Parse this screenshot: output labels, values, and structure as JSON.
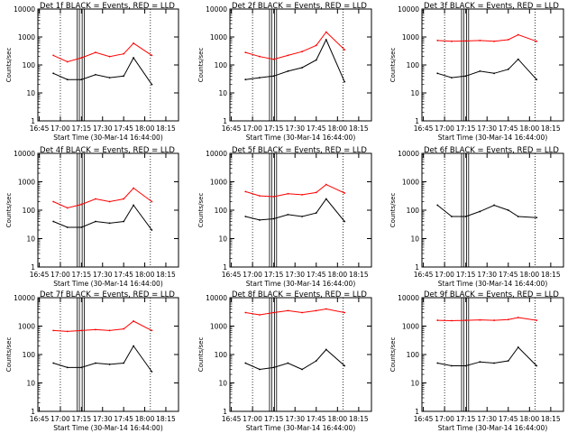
{
  "figure": {
    "start_time_label": "Start Time (30-Mar-14 16:44:00)",
    "y_axis_label": "Counts/sec",
    "x_ticks": [
      "16:45",
      "17:00",
      "17:15",
      "17:30",
      "17:45",
      "18:00",
      "18:15"
    ],
    "y_ticks": [
      "1",
      "10",
      "100",
      "1000",
      "10000"
    ],
    "colors": {
      "events": "#000000",
      "lld": "#ff0000"
    }
  },
  "chart_data": [
    {
      "type": "line",
      "title": "Det 1f BLACK = Events, RED = LLD",
      "xlabel": "Start Time (30-Mar-14 16:44:00)",
      "ylabel": "Counts/sec",
      "yscale": "log",
      "ylim": [
        1,
        10000
      ],
      "xlim": [
        "16:44",
        "18:24"
      ],
      "x": [
        "16:55",
        "17:05",
        "17:15",
        "17:25",
        "17:35",
        "17:45",
        "17:52",
        "18:05"
      ],
      "series": [
        {
          "name": "Events",
          "values": [
            50,
            30,
            30,
            45,
            35,
            40,
            180,
            20
          ]
        },
        {
          "name": "LLD",
          "values": [
            220,
            130,
            180,
            280,
            200,
            250,
            600,
            220
          ]
        }
      ]
    },
    {
      "type": "line",
      "title": "Det 2f BLACK = Events, RED = LLD",
      "xlabel": "Start Time (30-Mar-14 16:44:00)",
      "ylabel": "Counts/sec",
      "yscale": "log",
      "ylim": [
        1,
        10000
      ],
      "xlim": [
        "16:44",
        "18:24"
      ],
      "x": [
        "16:55",
        "17:05",
        "17:15",
        "17:25",
        "17:35",
        "17:45",
        "17:52",
        "18:05"
      ],
      "series": [
        {
          "name": "Events",
          "values": [
            30,
            35,
            40,
            60,
            80,
            150,
            800,
            25
          ]
        },
        {
          "name": "LLD",
          "values": [
            280,
            200,
            160,
            220,
            300,
            500,
            1500,
            350
          ]
        }
      ]
    },
    {
      "type": "line",
      "title": "Det 3f BLACK = Events, RED = LLD",
      "xlabel": "Start Time (30-Mar-14 16:44:00)",
      "ylabel": "Counts/sec",
      "yscale": "log",
      "ylim": [
        1,
        10000
      ],
      "xlim": [
        "16:44",
        "18:24"
      ],
      "x": [
        "16:55",
        "17:05",
        "17:15",
        "17:25",
        "17:35",
        "17:45",
        "17:52",
        "18:05"
      ],
      "series": [
        {
          "name": "Events",
          "values": [
            50,
            35,
            40,
            60,
            50,
            70,
            160,
            30
          ]
        },
        {
          "name": "LLD",
          "values": [
            750,
            700,
            720,
            750,
            700,
            800,
            1200,
            700
          ]
        }
      ]
    },
    {
      "type": "line",
      "title": "Det 4f BLACK = Events, RED = LLD",
      "xlabel": "Start Time (30-Mar-14 16:44:00)",
      "ylabel": "Counts/sec",
      "yscale": "log",
      "ylim": [
        1,
        10000
      ],
      "xlim": [
        "16:44",
        "18:24"
      ],
      "x": [
        "16:55",
        "17:05",
        "17:15",
        "17:25",
        "17:35",
        "17:45",
        "17:52",
        "18:05"
      ],
      "series": [
        {
          "name": "Events",
          "values": [
            40,
            25,
            25,
            40,
            35,
            40,
            150,
            20
          ]
        },
        {
          "name": "LLD",
          "values": [
            200,
            120,
            160,
            250,
            200,
            250,
            600,
            200
          ]
        }
      ]
    },
    {
      "type": "line",
      "title": "Det 5f BLACK = Events, RED = LLD",
      "xlabel": "Start Time (30-Mar-14 16:44:00)",
      "ylabel": "Counts/sec",
      "yscale": "log",
      "ylim": [
        1,
        10000
      ],
      "xlim": [
        "16:44",
        "18:24"
      ],
      "x": [
        "16:55",
        "17:05",
        "17:15",
        "17:25",
        "17:35",
        "17:45",
        "17:52",
        "18:05"
      ],
      "series": [
        {
          "name": "Events",
          "values": [
            60,
            45,
            50,
            70,
            60,
            80,
            250,
            40
          ]
        },
        {
          "name": "LLD",
          "values": [
            450,
            320,
            300,
            380,
            350,
            420,
            800,
            400
          ]
        }
      ]
    },
    {
      "type": "line",
      "title": "Det 6f BLACK = Events, RED = LLD",
      "xlabel": "Start Time (30-Mar-14 16:44:00)",
      "ylabel": "Counts/sec",
      "yscale": "log",
      "ylim": [
        1,
        10000
      ],
      "xlim": [
        "16:44",
        "18:24"
      ],
      "x": [
        "16:55",
        "17:05",
        "17:15",
        "17:25",
        "17:35",
        "17:45",
        "17:52",
        "18:05"
      ],
      "series": [
        {
          "name": "Events",
          "values": [
            150,
            60,
            60,
            90,
            150,
            100,
            60,
            55
          ]
        }
      ]
    },
    {
      "type": "line",
      "title": "Det 7f BLACK = Events, RED = LLD",
      "xlabel": "Start Time (30-Mar-14 16:44:00)",
      "ylabel": "Counts/sec",
      "yscale": "log",
      "ylim": [
        1,
        10000
      ],
      "xlim": [
        "16:44",
        "18:24"
      ],
      "x": [
        "16:55",
        "17:05",
        "17:15",
        "17:25",
        "17:35",
        "17:45",
        "17:52",
        "18:05"
      ],
      "series": [
        {
          "name": "Events",
          "values": [
            50,
            35,
            35,
            50,
            45,
            50,
            200,
            25
          ]
        },
        {
          "name": "LLD",
          "values": [
            700,
            650,
            700,
            750,
            700,
            800,
            1500,
            700
          ]
        }
      ]
    },
    {
      "type": "line",
      "title": "Det 8f BLACK = Events, RED = LLD",
      "xlabel": "Start Time (30-Mar-14 16:44:00)",
      "ylabel": "Counts/sec",
      "yscale": "log",
      "ylim": [
        1,
        10000
      ],
      "xlim": [
        "16:44",
        "18:24"
      ],
      "x": [
        "16:55",
        "17:05",
        "17:15",
        "17:25",
        "17:35",
        "17:45",
        "17:52",
        "18:05"
      ],
      "series": [
        {
          "name": "Events",
          "values": [
            50,
            30,
            35,
            50,
            30,
            60,
            150,
            40
          ]
        },
        {
          "name": "LLD",
          "values": [
            3000,
            2500,
            3000,
            3500,
            3000,
            3500,
            4000,
            3000
          ]
        }
      ]
    },
    {
      "type": "line",
      "title": "Det 9f BLACK = Events, RED = LLD",
      "xlabel": "Start Time (30-Mar-14 16:44:00)",
      "ylabel": "Counts/sec",
      "yscale": "log",
      "ylim": [
        1,
        10000
      ],
      "xlim": [
        "16:44",
        "18:24"
      ],
      "x": [
        "16:55",
        "17:05",
        "17:15",
        "17:25",
        "17:35",
        "17:45",
        "17:52",
        "18:05"
      ],
      "series": [
        {
          "name": "Events",
          "values": [
            50,
            40,
            40,
            55,
            50,
            60,
            180,
            40
          ]
        },
        {
          "name": "LLD",
          "values": [
            1600,
            1550,
            1600,
            1650,
            1600,
            1700,
            2000,
            1600
          ]
        }
      ]
    }
  ]
}
